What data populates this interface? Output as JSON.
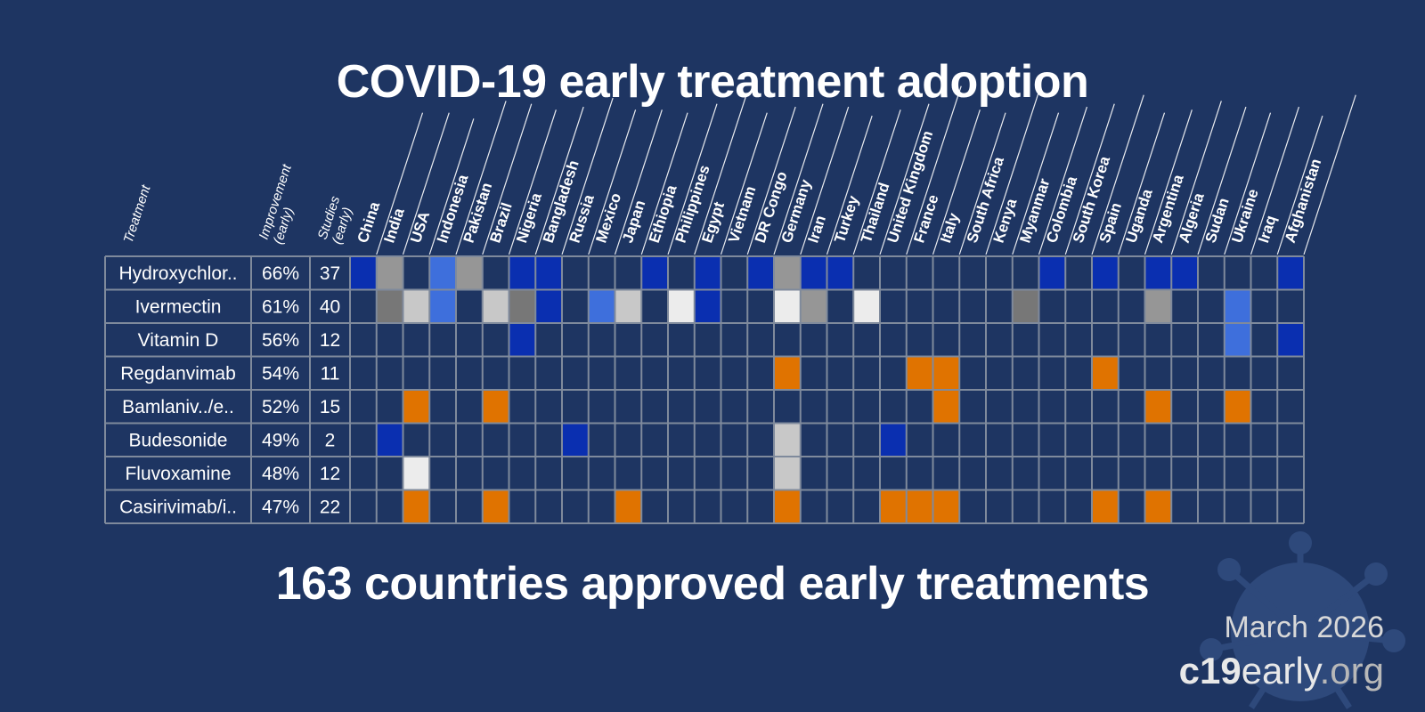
{
  "title": "COVID-19 early treatment adoption",
  "subtitle": "163 countries approved early treatments",
  "date": "March 2026",
  "site": {
    "part1": "c19",
    "part2": "early",
    "part3": ".org"
  },
  "colors": {
    "background": "#1e3562",
    "grid": "#7f8a9c",
    "blue": "#0a2fb0",
    "light_blue": "#3e6fdc",
    "gray": "#969696",
    "dark_gray": "#777777",
    "light_gray": "#c8c8c8",
    "very_light_gray": "#ececec",
    "orange": "#e07300"
  },
  "chart_data": {
    "type": "table",
    "column_headers": {
      "treatment": "Treatment",
      "improvement": [
        "Improvement",
        "(early)"
      ],
      "studies": [
        "Studies",
        "(early)"
      ]
    },
    "countries": [
      "China",
      "India",
      "USA",
      "Indonesia",
      "Pakistan",
      "Brazil",
      "Nigeria",
      "Bangladesh",
      "Russia",
      "Mexico",
      "Japan",
      "Ethiopia",
      "Philippines",
      "Egypt",
      "Vietnam",
      "DR Congo",
      "Germany",
      "Iran",
      "Turkey",
      "Thailand",
      "United Kingdom",
      "France",
      "Italy",
      "South Africa",
      "Kenya",
      "Myanmar",
      "Colombia",
      "South Korea",
      "Spain",
      "Uganda",
      "Argentina",
      "Algeria",
      "Sudan",
      "Ukraine",
      "Iraq",
      "Afghanistan"
    ],
    "legend_codes": {
      "B": "blue",
      "LB": "light_blue",
      "G": "gray",
      "DG": "dark_gray",
      "LG": "light_gray",
      "W": "very_light_gray",
      "O": "orange"
    },
    "rows": [
      {
        "treatment": "Hydroxychlor..",
        "improvement": "66%",
        "studies": "37",
        "cells": [
          "B",
          "G",
          "",
          "LB",
          "G",
          "",
          "B",
          "B",
          "",
          "",
          "",
          "B",
          "",
          "B",
          "",
          "B",
          "G",
          "B",
          "B",
          "",
          "",
          "",
          "",
          "",
          "",
          "",
          "B",
          "",
          "B",
          "",
          "B",
          "B",
          "",
          "",
          "",
          "B"
        ]
      },
      {
        "treatment": "Ivermectin",
        "improvement": "61%",
        "studies": "40",
        "cells": [
          "",
          "DG",
          "LG",
          "LB",
          "",
          "LG",
          "DG",
          "B",
          "",
          "LB",
          "LG",
          "",
          "W",
          "B",
          "",
          "",
          "W",
          "G",
          "",
          "W",
          "",
          "",
          "",
          "",
          "",
          "DG",
          "",
          "",
          "",
          "",
          "G",
          "",
          "",
          "LB",
          "",
          ""
        ]
      },
      {
        "treatment": "Vitamin D",
        "improvement": "56%",
        "studies": "12",
        "cells": [
          "",
          "",
          "",
          "",
          "",
          "",
          "B",
          "",
          "",
          "",
          "",
          "",
          "",
          "",
          "",
          "",
          "",
          "",
          "",
          "",
          "",
          "",
          "",
          "",
          "",
          "",
          "",
          "",
          "",
          "",
          "",
          "",
          "",
          "LB",
          "",
          "B"
        ]
      },
      {
        "treatment": "Regdanvimab",
        "improvement": "54%",
        "studies": "11",
        "cells": [
          "",
          "",
          "",
          "",
          "",
          "",
          "",
          "",
          "",
          "",
          "",
          "",
          "",
          "",
          "",
          "",
          "O",
          "",
          "",
          "",
          "",
          "O",
          "O",
          "",
          "",
          "",
          "",
          "",
          "O",
          "",
          "",
          "",
          "",
          "",
          "",
          ""
        ]
      },
      {
        "treatment": "Bamlaniv../e..",
        "improvement": "52%",
        "studies": "15",
        "cells": [
          "",
          "",
          "O",
          "",
          "",
          "O",
          "",
          "",
          "",
          "",
          "",
          "",
          "",
          "",
          "",
          "",
          "",
          "",
          "",
          "",
          "",
          "",
          "O",
          "",
          "",
          "",
          "",
          "",
          "",
          "",
          "O",
          "",
          "",
          "O",
          "",
          ""
        ]
      },
      {
        "treatment": "Budesonide",
        "improvement": "49%",
        "studies": "2",
        "cells": [
          "",
          "B",
          "",
          "",
          "",
          "",
          "",
          "",
          "B",
          "",
          "",
          "",
          "",
          "",
          "",
          "",
          "LG",
          "",
          "",
          "",
          "B",
          "",
          "",
          "",
          "",
          "",
          "",
          "",
          "",
          "",
          "",
          "",
          "",
          "",
          "",
          ""
        ]
      },
      {
        "treatment": "Fluvoxamine",
        "improvement": "48%",
        "studies": "12",
        "cells": [
          "",
          "",
          "W",
          "",
          "",
          "",
          "",
          "",
          "",
          "",
          "",
          "",
          "",
          "",
          "",
          "",
          "LG",
          "",
          "",
          "",
          "",
          "",
          "",
          "",
          "",
          "",
          "",
          "",
          "",
          "",
          "",
          "",
          "",
          "",
          "",
          ""
        ]
      },
      {
        "treatment": "Casirivimab/i..",
        "improvement": "47%",
        "studies": "22",
        "cells": [
          "",
          "",
          "O",
          "",
          "",
          "O",
          "",
          "",
          "",
          "",
          "O",
          "",
          "",
          "",
          "",
          "",
          "O",
          "",
          "",
          "",
          "O",
          "O",
          "O",
          "",
          "",
          "",
          "",
          "",
          "O",
          "",
          "O",
          "",
          "",
          "",
          "",
          ""
        ]
      }
    ]
  }
}
